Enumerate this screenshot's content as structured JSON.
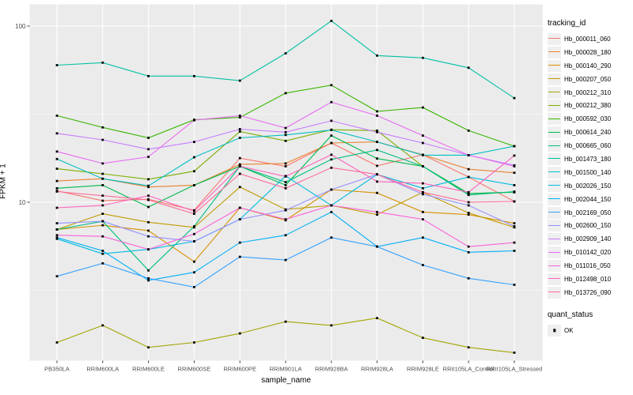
{
  "chart_data": {
    "type": "line",
    "title": "",
    "xlabel": "sample_name",
    "ylabel": "FPKM + 1",
    "y_scale": "log10",
    "y_ticks": [
      10,
      100
    ],
    "y_minor_ticks": [
      3.1623,
      31.623
    ],
    "ylim": [
      1.26,
      132
    ],
    "grid": true,
    "legend_position": "right",
    "categories": [
      "PB350LA",
      "RRIM600LA",
      "RRIM600LE",
      "RRIM600SE",
      "RRIM600PE",
      "RRIM901LA",
      "RRIM928BA",
      "RRIM928LA",
      "RRIM928LE",
      "RRII105LA_Control",
      "RRII105LA_Stressed"
    ],
    "series": [
      {
        "name": "Hb_000011_060",
        "color": "#F8766D",
        "values": [
          11.6,
          10.2,
          10.4,
          9.0,
          17.8,
          16.0,
          21.7,
          16.1,
          18.6,
          13.9,
          10.1
        ]
      },
      {
        "name": "Hb_000028_180",
        "color": "#EA8331",
        "values": [
          13.2,
          13.6,
          12.2,
          12.5,
          16.4,
          16.6,
          21.7,
          22.0,
          18.6,
          15.4,
          14.7
        ]
      },
      {
        "name": "Hb_000140_290",
        "color": "#D89000",
        "values": [
          7.0,
          7.4,
          6.9,
          4.6,
          9.3,
          7.9,
          11.8,
          11.3,
          8.8,
          8.5,
          7.6
        ]
      },
      {
        "name": "Hb_000207_050",
        "color": "#C09B00",
        "values": [
          7.0,
          8.6,
          7.7,
          7.2,
          12.2,
          9.1,
          9.6,
          8.5,
          11.4,
          8.7,
          7.2
        ]
      },
      {
        "name": "Hb_000212_310",
        "color": "#A3A500",
        "values": [
          1.6,
          2.0,
          1.5,
          1.6,
          1.8,
          2.1,
          2.0,
          2.2,
          1.7,
          1.5,
          1.4
        ]
      },
      {
        "name": "Hb_000212_380",
        "color": "#7CAE00",
        "values": [
          15.5,
          14.5,
          13.5,
          15.0,
          25.2,
          22.3,
          25.8,
          25.5,
          16.0,
          11.2,
          11.4
        ]
      },
      {
        "name": "Hb_000592_030",
        "color": "#39B600",
        "values": [
          31.0,
          26.6,
          23.2,
          29.4,
          30.3,
          41.6,
          46.2,
          32.8,
          34.5,
          25.5,
          20.8
        ]
      },
      {
        "name": "Hb_000614_240",
        "color": "#00BB4E",
        "values": [
          12.0,
          12.5,
          9.4,
          12.5,
          16.0,
          12.5,
          23.9,
          17.7,
          16.0,
          11.2,
          11.4
        ]
      },
      {
        "name": "Hb_000665_060",
        "color": "#00BF7D",
        "values": [
          7.0,
          7.8,
          4.1,
          7.3,
          16.0,
          13.0,
          17.5,
          19.8,
          16.0,
          11.0,
          11.5
        ]
      },
      {
        "name": "Hb_001473_180",
        "color": "#00C1A3",
        "values": [
          60,
          62,
          52,
          52,
          49,
          70,
          107,
          68,
          66,
          58,
          39
        ]
      },
      {
        "name": "Hb_001500_140",
        "color": "#00BFC4",
        "values": [
          17.6,
          13.6,
          12.4,
          18.0,
          23.2,
          24.1,
          25.7,
          22.0,
          18.5,
          18.5,
          20.8
        ]
      },
      {
        "name": "Hb_002026_150",
        "color": "#00BAE0",
        "values": [
          6.2,
          5.1,
          5.4,
          6.0,
          8.0,
          14.1,
          9.6,
          14.4,
          12.0,
          13.9,
          12.5
        ]
      },
      {
        "name": "Hb_002044_150",
        "color": "#00B0F6",
        "values": [
          6.3,
          5.3,
          3.6,
          4.0,
          5.9,
          6.5,
          8.8,
          5.6,
          6.3,
          5.2,
          5.3
        ]
      },
      {
        "name": "Hb_002169_050",
        "color": "#35A2FF",
        "values": [
          3.8,
          4.5,
          3.7,
          3.3,
          4.9,
          4.7,
          6.3,
          5.6,
          4.4,
          3.7,
          3.4
        ]
      },
      {
        "name": "Hb_002600_150",
        "color": "#9590FF",
        "values": [
          7.6,
          7.8,
          6.4,
          6.0,
          8.0,
          9.0,
          11.8,
          14.4,
          11.1,
          9.6,
          7.3
        ]
      },
      {
        "name": "Hb_002909_140",
        "color": "#C77CFF",
        "values": [
          24.6,
          22.6,
          20.0,
          22.0,
          26.0,
          25.0,
          29.0,
          25.0,
          21.7,
          18.5,
          16.2
        ]
      },
      {
        "name": "Hb_010142_020",
        "color": "#E76BF3",
        "values": [
          19.4,
          16.6,
          18.1,
          29.2,
          31.0,
          26.4,
          37.0,
          31.0,
          23.9,
          18.5,
          16.0
        ]
      },
      {
        "name": "Hb_011016_050",
        "color": "#FA62DB",
        "values": [
          6.5,
          6.4,
          5.4,
          6.6,
          9.3,
          8.0,
          9.6,
          8.8,
          8.0,
          5.6,
          5.9
        ]
      },
      {
        "name": "Hb_012498_010",
        "color": "#FF62BC",
        "values": [
          9.3,
          9.6,
          10.9,
          8.9,
          16.0,
          14.0,
          18.6,
          13.1,
          12.8,
          11.4,
          18.4
        ]
      },
      {
        "name": "Hb_013726_090",
        "color": "#FF6A98",
        "values": [
          11.5,
          10.9,
          10.3,
          8.6,
          14.5,
          12.0,
          15.7,
          14.4,
          11.4,
          10.0,
          10.1
        ]
      }
    ],
    "legend": {
      "title": "tracking_id"
    },
    "quant_legend": {
      "title": "quant_status",
      "items": [
        {
          "label": "OK",
          "marker": "black-square"
        }
      ]
    },
    "style": {
      "panel_fill": "#EBEBEB",
      "grid_color": "#FFFFFF",
      "point_color": "#000000",
      "axis_text_color": "#4D4D4D",
      "tick_color": "#333333"
    }
  }
}
